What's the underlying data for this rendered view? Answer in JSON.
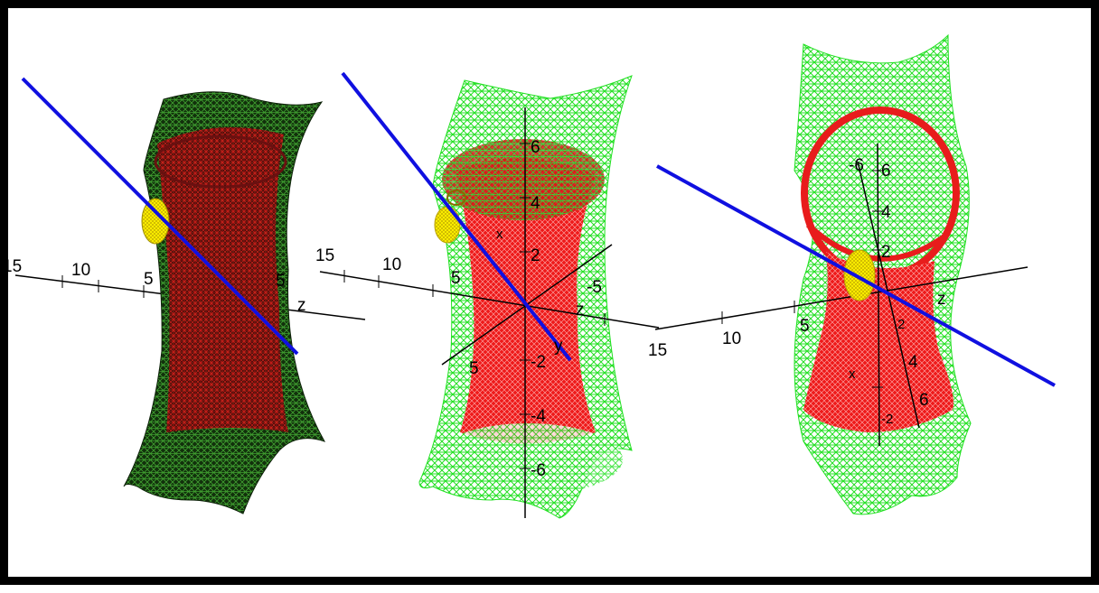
{
  "colors": {
    "frame": "#000000",
    "background": "#ffffff",
    "mesh_dark_green": "#1f4a14",
    "mesh_bright_green": "#2ee82e",
    "mesh_red": "#e81c1c",
    "mesh_dark_red": "#7a1212",
    "line_blue": "#1010e0",
    "sphere_yellow": "#ffee00",
    "axis": "#000000"
  },
  "panels": [
    {
      "style": "dark",
      "axis_labels": [
        {
          "name": "label-15",
          "text": "15"
        },
        {
          "name": "label-10",
          "text": "10"
        },
        {
          "name": "label-5",
          "text": "5"
        },
        {
          "name": "label-5b",
          "text": "5"
        },
        {
          "name": "label-z",
          "text": "z"
        }
      ]
    },
    {
      "style": "wire",
      "axis_labels": [
        {
          "name": "label-15",
          "text": "15"
        },
        {
          "name": "label-10",
          "text": "10"
        },
        {
          "name": "label-5",
          "text": "5"
        },
        {
          "name": "label-x",
          "text": "x"
        },
        {
          "name": "label-z",
          "text": "z"
        },
        {
          "name": "label-neg5",
          "text": "-5"
        },
        {
          "name": "label-6",
          "text": "6"
        },
        {
          "name": "label-4",
          "text": "4"
        },
        {
          "name": "label-2",
          "text": "2"
        },
        {
          "name": "label-neg2",
          "text": "-2"
        },
        {
          "name": "label-neg4",
          "text": "-4"
        },
        {
          "name": "label-neg6",
          "text": "-6"
        },
        {
          "name": "label-5c",
          "text": "5"
        },
        {
          "name": "label-y",
          "text": "y"
        }
      ]
    },
    {
      "style": "rotated",
      "axis_labels": [
        {
          "name": "label-15",
          "text": "15"
        },
        {
          "name": "label-10",
          "text": "10"
        },
        {
          "name": "label-5",
          "text": "5"
        },
        {
          "name": "label-z",
          "text": "z"
        },
        {
          "name": "label-neg6",
          "text": "-6"
        },
        {
          "name": "label-6",
          "text": "6"
        },
        {
          "name": "label-4",
          "text": "4"
        },
        {
          "name": "label-2",
          "text": "2"
        },
        {
          "name": "label-2b",
          "text": "2"
        },
        {
          "name": "label-4b",
          "text": "4"
        },
        {
          "name": "label-6b",
          "text": "6"
        },
        {
          "name": "label-neg2",
          "text": "-2"
        },
        {
          "name": "label-x",
          "text": "x"
        }
      ]
    }
  ]
}
